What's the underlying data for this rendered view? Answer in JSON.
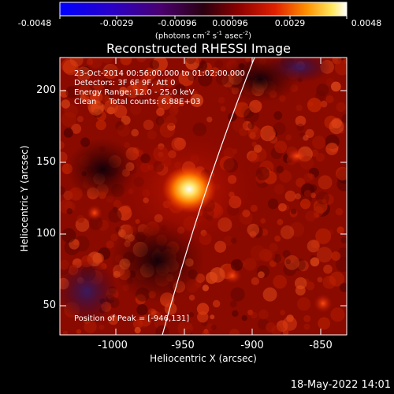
{
  "colorbar": {
    "tick_labels": [
      "-0.0048",
      "-0.0029",
      "-0.00096",
      "0.00096",
      "0.0029",
      "0.0048"
    ],
    "units_label": "(photons cm",
    "units_sup1": "-2",
    "units_mid": " s",
    "units_sup2": "-1",
    "units_mid2": " asec",
    "units_sup3": "-2",
    "units_end": ")"
  },
  "title": "Reconstructed RHESSI Image",
  "info": {
    "time_range": "23-Oct-2014 00:56:00.000 to 01:02:00.000",
    "detectors": "Detectors: 3F 6F 9F, Att 0",
    "energy": "Energy Range: 12.0 - 25.0 keV",
    "clean": "Clean     Total counts: 6.88E+03",
    "peak": "Position of Peak = [-946,131]"
  },
  "axes": {
    "xlabel": "Heliocentric X (arcsec)",
    "ylabel": "Heliocentric Y (arcsec)",
    "xticks": [
      "-1000",
      "-950",
      "-900",
      "-850"
    ],
    "yticks": [
      "200",
      "150",
      "100",
      "50"
    ]
  },
  "footer_date": "18-May-2022 14:01",
  "image": {
    "peak": [
      -946,
      131
    ],
    "xlim": [
      -1037,
      -830
    ],
    "ylim": [
      31,
      222
    ]
  }
}
